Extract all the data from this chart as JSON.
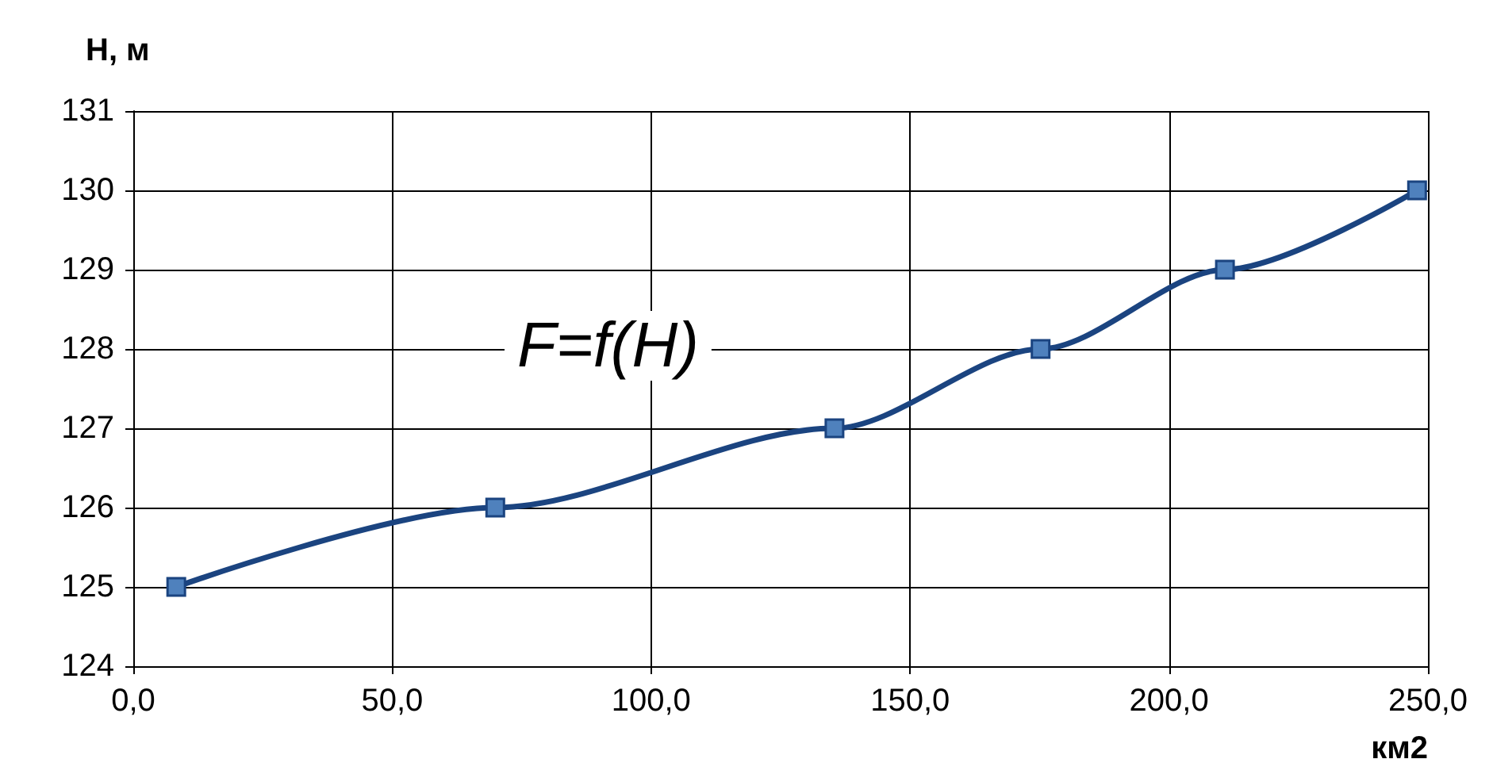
{
  "chart_data": {
    "type": "line",
    "xlabel": "км2",
    "ylabel": "H, м",
    "annotations": [
      "F=f(H)"
    ],
    "x": [
      8.3,
      69.9,
      135.4,
      175.2,
      210.8,
      247.9
    ],
    "series": [
      {
        "color": "#1b4480",
        "values": [
          125,
          126,
          127,
          128,
          129,
          130
        ]
      }
    ],
    "xlim": [
      0,
      250
    ],
    "xticks": [
      {
        "value": 0,
        "label": "0,0"
      },
      {
        "value": 50,
        "label": "50,0"
      },
      {
        "value": 100,
        "label": "100,0"
      },
      {
        "value": 150,
        "label": "150,0"
      },
      {
        "value": 200,
        "label": "200,0"
      },
      {
        "value": 250,
        "label": "250,0"
      }
    ],
    "ylim": [
      124,
      131
    ],
    "yticks": [
      124,
      125,
      126,
      127,
      128,
      129,
      130,
      131
    ],
    "grid": true,
    "marker": "square",
    "line_style": "solid"
  }
}
